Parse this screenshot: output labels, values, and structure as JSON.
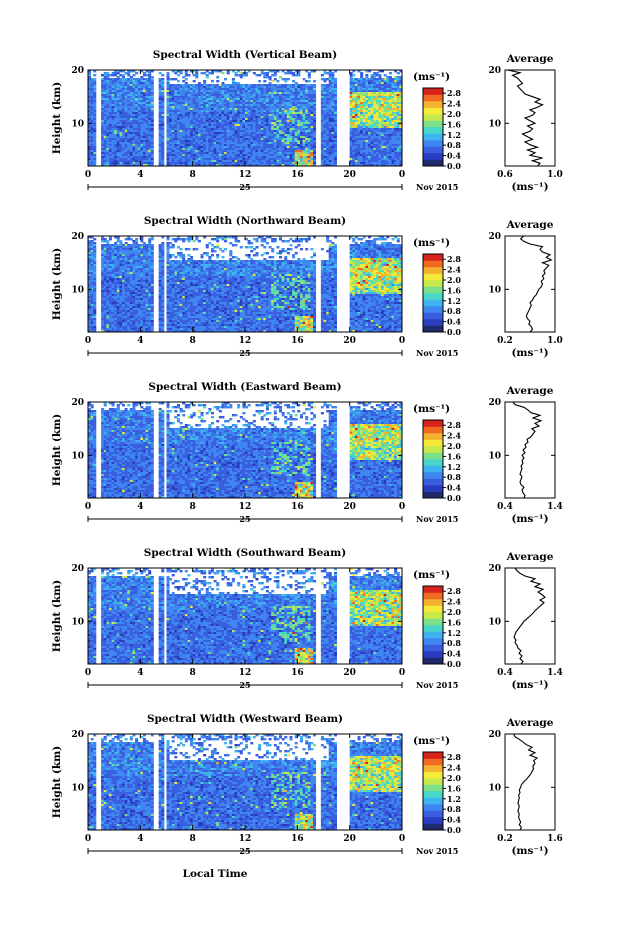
{
  "figure": {
    "xlabel": "Local Time",
    "date_label": "Nov 2015",
    "day_label": "25",
    "unit_label": "(ms⁻¹)",
    "average_title": "Average",
    "average_xlabel": "(ms⁻¹)",
    "colorscale": [
      "#1f2a6e",
      "#2b3dbf",
      "#3a5ee0",
      "#3f86f0",
      "#3fb3f0",
      "#48d6c8",
      "#7be08a",
      "#c6e84a",
      "#f5e93a",
      "#f5b230",
      "#f06a22",
      "#d6231c"
    ],
    "gap_color": "#ffffff"
  },
  "chart_data": [
    {
      "type": "heatmap",
      "title": "Spectral Width (Vertical Beam)",
      "ylabel": "Height (km)",
      "x_ticks": [
        "0",
        "4",
        "8",
        "12",
        "16",
        "20",
        "0"
      ],
      "xlim": [
        0,
        24
      ],
      "y_ticks": [
        "20",
        "10"
      ],
      "ylim": [
        2,
        20
      ],
      "colorbar": {
        "ticks": [
          "2.8",
          "2.4",
          "2.0",
          "1.6",
          "1.2",
          "0.8",
          "0.4",
          "0.0"
        ],
        "range": [
          0,
          3.0
        ]
      },
      "average": {
        "x_ticks": [
          "0.6",
          "1.0"
        ],
        "xlim": [
          0.6,
          1.0
        ],
        "y_ticks": [
          "20",
          "10"
        ],
        "ylim": [
          2,
          20
        ],
        "profile": [
          0.86,
          0.88,
          0.82,
          0.9,
          0.8,
          0.84,
          0.78,
          0.86,
          0.8,
          0.76,
          0.82,
          0.78,
          0.74,
          0.8,
          0.82,
          0.78,
          0.84,
          0.8,
          0.76,
          0.82,
          0.84,
          0.8,
          0.86,
          0.9,
          0.84,
          0.88,
          0.82,
          0.76,
          0.74,
          0.72,
          0.7,
          0.74,
          0.72,
          0.7,
          0.66,
          0.72,
          0.62
        ]
      }
    },
    {
      "type": "heatmap",
      "title": "Spectral Width (Northward Beam)",
      "ylabel": "Height (km)",
      "x_ticks": [
        "0",
        "4",
        "8",
        "12",
        "16",
        "20",
        "0"
      ],
      "xlim": [
        0,
        24
      ],
      "y_ticks": [
        "20",
        "10"
      ],
      "ylim": [
        2,
        20
      ],
      "colorbar": {
        "ticks": [
          "2.8",
          "2.4",
          "2.0",
          "1.6",
          "1.2",
          "0.8",
          "0.4",
          "0.0"
        ],
        "range": [
          0,
          3.0
        ]
      },
      "average": {
        "x_ticks": [
          "0.2",
          "1.0"
        ],
        "xlim": [
          0.2,
          1.0
        ],
        "y_ticks": [
          "20",
          "10"
        ],
        "ylim": [
          2,
          20
        ],
        "profile": [
          0.6,
          0.64,
          0.62,
          0.58,
          0.6,
          0.56,
          0.54,
          0.56,
          0.58,
          0.6,
          0.62,
          0.6,
          0.64,
          0.66,
          0.7,
          0.72,
          0.74,
          0.78,
          0.8,
          0.78,
          0.82,
          0.8,
          0.84,
          0.82,
          0.86,
          0.9,
          0.8,
          0.94,
          0.86,
          0.92,
          0.8,
          0.76,
          0.8,
          0.6,
          0.5,
          0.45,
          0.5
        ]
      }
    },
    {
      "type": "heatmap",
      "title": "Spectral Width (Eastward Beam)",
      "ylabel": "Height (km)",
      "x_ticks": [
        "0",
        "4",
        "8",
        "12",
        "16",
        "20",
        "0"
      ],
      "xlim": [
        0,
        24
      ],
      "y_ticks": [
        "20",
        "10"
      ],
      "ylim": [
        2,
        20
      ],
      "colorbar": {
        "ticks": [
          "2.8",
          "2.4",
          "2.0",
          "1.6",
          "1.2",
          "0.8",
          "0.4",
          "0.0"
        ],
        "range": [
          0,
          3.0
        ]
      },
      "average": {
        "x_ticks": [
          "0.4",
          "1.4"
        ],
        "xlim": [
          0.4,
          1.4
        ],
        "y_ticks": [
          "20",
          "10"
        ],
        "ylim": [
          2,
          20
        ],
        "profile": [
          0.78,
          0.8,
          0.76,
          0.74,
          0.78,
          0.72,
          0.7,
          0.72,
          0.74,
          0.7,
          0.72,
          0.74,
          0.72,
          0.76,
          0.74,
          0.78,
          0.74,
          0.8,
          0.76,
          0.82,
          0.8,
          0.86,
          0.84,
          0.92,
          0.96,
          1.0,
          0.94,
          1.08,
          1.0,
          1.12,
          0.96,
          1.1,
          0.92,
          0.86,
          0.78,
          0.6,
          0.56
        ]
      }
    },
    {
      "type": "heatmap",
      "title": "Spectral Width (Southward Beam)",
      "ylabel": "Height (km)",
      "x_ticks": [
        "0",
        "4",
        "8",
        "12",
        "16",
        "20",
        "0"
      ],
      "xlim": [
        0,
        24
      ],
      "y_ticks": [
        "20",
        "10"
      ],
      "ylim": [
        2,
        20
      ],
      "colorbar": {
        "ticks": [
          "2.8",
          "2.4",
          "2.0",
          "1.6",
          "1.2",
          "0.8",
          "0.4",
          "0.0"
        ],
        "range": [
          0,
          3.0
        ]
      },
      "average": {
        "x_ticks": [
          "0.4",
          "1.4"
        ],
        "xlim": [
          0.4,
          1.4
        ],
        "y_ticks": [
          "20",
          "10"
        ],
        "ylim": [
          2,
          20
        ],
        "profile": [
          0.72,
          0.76,
          0.7,
          0.74,
          0.68,
          0.72,
          0.66,
          0.64,
          0.6,
          0.62,
          0.58,
          0.6,
          0.62,
          0.66,
          0.7,
          0.74,
          0.78,
          0.84,
          0.9,
          0.96,
          1.0,
          1.06,
          1.12,
          1.18,
          1.1,
          1.2,
          1.14,
          1.06,
          1.16,
          1.0,
          1.1,
          0.92,
          1.0,
          0.8,
          0.7,
          0.64,
          0.6
        ]
      }
    },
    {
      "type": "heatmap",
      "title": "Spectral Width (Westward Beam)",
      "ylabel": "Height (km)",
      "x_ticks": [
        "0",
        "4",
        "8",
        "12",
        "16",
        "20",
        "0"
      ],
      "xlim": [
        0,
        24
      ],
      "y_ticks": [
        "20",
        "10"
      ],
      "ylim": [
        2,
        20
      ],
      "colorbar": {
        "ticks": [
          "2.8",
          "2.4",
          "2.0",
          "1.6",
          "1.2",
          "0.8",
          "0.4",
          "0.0"
        ],
        "range": [
          0,
          3.0
        ]
      },
      "average": {
        "x_ticks": [
          "0.2",
          "1.6"
        ],
        "xlim": [
          0.2,
          1.6
        ],
        "y_ticks": [
          "20",
          "10"
        ],
        "ylim": [
          2,
          20
        ],
        "profile": [
          0.62,
          0.66,
          0.6,
          0.64,
          0.6,
          0.58,
          0.6,
          0.56,
          0.58,
          0.6,
          0.56,
          0.58,
          0.6,
          0.58,
          0.62,
          0.6,
          0.64,
          0.66,
          0.72,
          0.8,
          0.86,
          0.92,
          0.96,
          1.0,
          0.98,
          1.04,
          1.0,
          1.1,
          0.9,
          1.04,
          0.86,
          0.96,
          0.8,
          0.7,
          0.6,
          0.48,
          0.44
        ]
      }
    }
  ]
}
